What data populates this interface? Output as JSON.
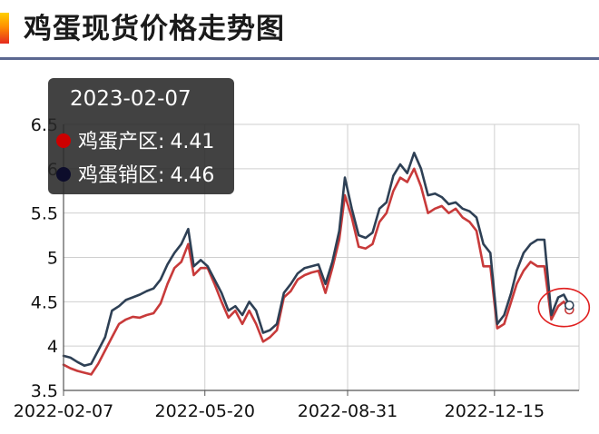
{
  "header": {
    "title": "鸡蛋现货价格走势图"
  },
  "tooltip": {
    "date": "2023-02-07",
    "rows": [
      {
        "label": "鸡蛋产区",
        "value": "4.41",
        "color": "#cc0000"
      },
      {
        "label": "鸡蛋销区",
        "value": "4.46",
        "color": "#0d0d2b"
      }
    ]
  },
  "chart_data": {
    "type": "line",
    "title": "",
    "xlabel": "",
    "ylabel": "",
    "ylim": [
      3.5,
      6.5
    ],
    "yticks": [
      3.5,
      4,
      4.5,
      5,
      5.5,
      6,
      6.5
    ],
    "ytick_labels": [
      "3.5",
      "4",
      "4.5",
      "5",
      "5.5",
      "6",
      "6.5"
    ],
    "xticks": [
      "2022-02-07",
      "2022-05-20",
      "2022-08-31",
      "2022-12-15"
    ],
    "xlim": [
      "2022-02-07",
      "2023-02-14"
    ],
    "grid": true,
    "highlight_point": "2023-02-07",
    "series": [
      {
        "name": "鸡蛋产区",
        "color": "#c83a3a",
        "points": [
          [
            "2022-02-07",
            3.79
          ],
          [
            "2022-02-12",
            3.75
          ],
          [
            "2022-02-17",
            3.72
          ],
          [
            "2022-02-22",
            3.7
          ],
          [
            "2022-02-27",
            3.68
          ],
          [
            "2022-03-04",
            3.8
          ],
          [
            "2022-03-09",
            3.95
          ],
          [
            "2022-03-14",
            4.1
          ],
          [
            "2022-03-19",
            4.25
          ],
          [
            "2022-03-24",
            4.3
          ],
          [
            "2022-03-29",
            4.33
          ],
          [
            "2022-04-03",
            4.32
          ],
          [
            "2022-04-08",
            4.35
          ],
          [
            "2022-04-13",
            4.37
          ],
          [
            "2022-04-18",
            4.48
          ],
          [
            "2022-04-23",
            4.7
          ],
          [
            "2022-04-28",
            4.88
          ],
          [
            "2022-05-03",
            4.95
          ],
          [
            "2022-05-08",
            5.15
          ],
          [
            "2022-05-12",
            4.8
          ],
          [
            "2022-05-17",
            4.88
          ],
          [
            "2022-05-22",
            4.88
          ],
          [
            "2022-05-27",
            4.7
          ],
          [
            "2022-06-01",
            4.5
          ],
          [
            "2022-06-06",
            4.32
          ],
          [
            "2022-06-11",
            4.4
          ],
          [
            "2022-06-16",
            4.25
          ],
          [
            "2022-06-21",
            4.4
          ],
          [
            "2022-06-26",
            4.25
          ],
          [
            "2022-07-01",
            4.05
          ],
          [
            "2022-07-06",
            4.1
          ],
          [
            "2022-07-11",
            4.18
          ],
          [
            "2022-07-16",
            4.55
          ],
          [
            "2022-07-21",
            4.62
          ],
          [
            "2022-07-26",
            4.75
          ],
          [
            "2022-07-31",
            4.8
          ],
          [
            "2022-08-05",
            4.83
          ],
          [
            "2022-08-10",
            4.85
          ],
          [
            "2022-08-15",
            4.6
          ],
          [
            "2022-08-20",
            4.88
          ],
          [
            "2022-08-25",
            5.2
          ],
          [
            "2022-08-29",
            5.7
          ],
          [
            "2022-09-03",
            5.45
          ],
          [
            "2022-09-08",
            5.12
          ],
          [
            "2022-09-13",
            5.1
          ],
          [
            "2022-09-18",
            5.15
          ],
          [
            "2022-09-23",
            5.4
          ],
          [
            "2022-09-28",
            5.5
          ],
          [
            "2022-10-03",
            5.75
          ],
          [
            "2022-10-08",
            5.9
          ],
          [
            "2022-10-13",
            5.85
          ],
          [
            "2022-10-18",
            6.0
          ],
          [
            "2022-10-23",
            5.8
          ],
          [
            "2022-10-28",
            5.5
          ],
          [
            "2022-11-02",
            5.55
          ],
          [
            "2022-11-07",
            5.58
          ],
          [
            "2022-11-12",
            5.5
          ],
          [
            "2022-11-17",
            5.55
          ],
          [
            "2022-11-22",
            5.45
          ],
          [
            "2022-11-27",
            5.4
          ],
          [
            "2022-12-02",
            5.3
          ],
          [
            "2022-12-07",
            4.9
          ],
          [
            "2022-12-12",
            4.9
          ],
          [
            "2022-12-17",
            4.2
          ],
          [
            "2022-12-22",
            4.25
          ],
          [
            "2022-12-27",
            4.5
          ],
          [
            "2022-12-31",
            4.7
          ],
          [
            "2023-01-05",
            4.85
          ],
          [
            "2023-01-10",
            4.95
          ],
          [
            "2023-01-15",
            4.9
          ],
          [
            "2023-01-20",
            4.9
          ],
          [
            "2023-01-25",
            4.3
          ],
          [
            "2023-01-30",
            4.45
          ],
          [
            "2023-02-03",
            4.5
          ],
          [
            "2023-02-07",
            4.41
          ]
        ]
      },
      {
        "name": "鸡蛋销区",
        "color": "#2e4055",
        "points": [
          [
            "2022-02-07",
            3.89
          ],
          [
            "2022-02-12",
            3.87
          ],
          [
            "2022-02-17",
            3.82
          ],
          [
            "2022-02-22",
            3.78
          ],
          [
            "2022-02-27",
            3.8
          ],
          [
            "2022-03-04",
            3.95
          ],
          [
            "2022-03-09",
            4.1
          ],
          [
            "2022-03-14",
            4.4
          ],
          [
            "2022-03-19",
            4.45
          ],
          [
            "2022-03-24",
            4.52
          ],
          [
            "2022-03-29",
            4.55
          ],
          [
            "2022-04-03",
            4.58
          ],
          [
            "2022-04-08",
            4.62
          ],
          [
            "2022-04-13",
            4.65
          ],
          [
            "2022-04-18",
            4.75
          ],
          [
            "2022-04-23",
            4.92
          ],
          [
            "2022-04-28",
            5.05
          ],
          [
            "2022-05-03",
            5.15
          ],
          [
            "2022-05-08",
            5.32
          ],
          [
            "2022-05-12",
            4.9
          ],
          [
            "2022-05-17",
            4.97
          ],
          [
            "2022-05-22",
            4.9
          ],
          [
            "2022-05-27",
            4.75
          ],
          [
            "2022-06-01",
            4.6
          ],
          [
            "2022-06-06",
            4.4
          ],
          [
            "2022-06-11",
            4.45
          ],
          [
            "2022-06-16",
            4.35
          ],
          [
            "2022-06-21",
            4.5
          ],
          [
            "2022-06-26",
            4.4
          ],
          [
            "2022-07-01",
            4.15
          ],
          [
            "2022-07-06",
            4.18
          ],
          [
            "2022-07-11",
            4.25
          ],
          [
            "2022-07-16",
            4.6
          ],
          [
            "2022-07-21",
            4.7
          ],
          [
            "2022-07-26",
            4.82
          ],
          [
            "2022-07-31",
            4.88
          ],
          [
            "2022-08-05",
            4.9
          ],
          [
            "2022-08-10",
            4.92
          ],
          [
            "2022-08-15",
            4.7
          ],
          [
            "2022-08-20",
            4.95
          ],
          [
            "2022-08-25",
            5.3
          ],
          [
            "2022-08-29",
            5.9
          ],
          [
            "2022-09-03",
            5.55
          ],
          [
            "2022-09-08",
            5.25
          ],
          [
            "2022-09-13",
            5.22
          ],
          [
            "2022-09-18",
            5.28
          ],
          [
            "2022-09-23",
            5.55
          ],
          [
            "2022-09-28",
            5.62
          ],
          [
            "2022-10-03",
            5.92
          ],
          [
            "2022-10-08",
            6.05
          ],
          [
            "2022-10-13",
            5.95
          ],
          [
            "2022-10-18",
            6.18
          ],
          [
            "2022-10-23",
            6.0
          ],
          [
            "2022-10-28",
            5.7
          ],
          [
            "2022-11-02",
            5.72
          ],
          [
            "2022-11-07",
            5.68
          ],
          [
            "2022-11-12",
            5.6
          ],
          [
            "2022-11-17",
            5.62
          ],
          [
            "2022-11-22",
            5.55
          ],
          [
            "2022-11-27",
            5.52
          ],
          [
            "2022-12-02",
            5.45
          ],
          [
            "2022-12-07",
            5.15
          ],
          [
            "2022-12-12",
            5.05
          ],
          [
            "2022-12-17",
            4.25
          ],
          [
            "2022-12-22",
            4.35
          ],
          [
            "2022-12-27",
            4.6
          ],
          [
            "2022-12-31",
            4.85
          ],
          [
            "2023-01-05",
            5.05
          ],
          [
            "2023-01-10",
            5.15
          ],
          [
            "2023-01-15",
            5.2
          ],
          [
            "2023-01-20",
            5.2
          ],
          [
            "2023-01-25",
            4.35
          ],
          [
            "2023-01-30",
            4.55
          ],
          [
            "2023-02-03",
            4.58
          ],
          [
            "2023-02-07",
            4.46
          ]
        ]
      }
    ],
    "annotation": {
      "type": "circle",
      "color": "#e02020",
      "around": "2023-02-07"
    }
  }
}
